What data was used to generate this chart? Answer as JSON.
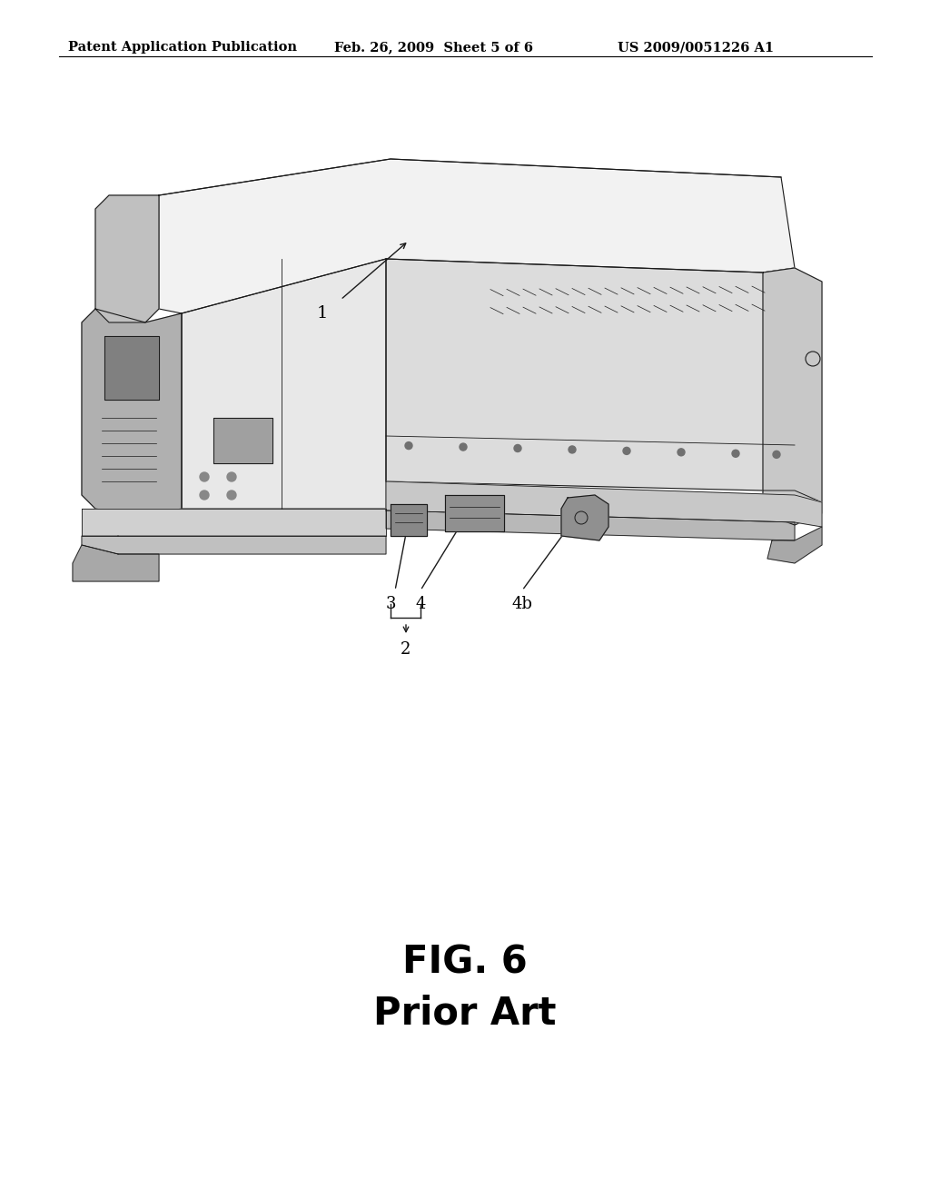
{
  "background_color": "#ffffff",
  "header_left": "Patent Application Publication",
  "header_center": "Feb. 26, 2009  Sheet 5 of 6",
  "header_right": "US 2009/0051226 A1",
  "header_fontsize": 10.5,
  "fig_label": "FIG. 6",
  "fig_sublabel": "Prior Art",
  "fig_label_fontsize": 30,
  "fig_sublabel_fontsize": 30,
  "lc": "#1a1a1a",
  "label_fontsize": 12
}
